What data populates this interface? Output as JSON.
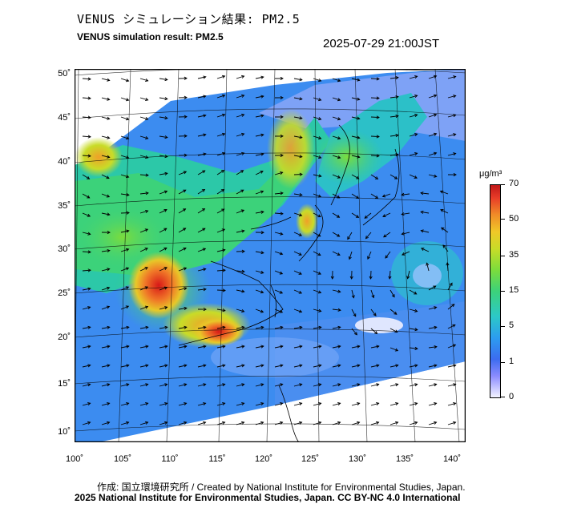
{
  "header": {
    "title_ja": "VENUS シミュレーション結果: PM2.5",
    "title_en": "VENUS simulation result: PM2.5",
    "datetime": "2025-07-29 21:00JST"
  },
  "map": {
    "lat_labels": [
      "50˚",
      "45˚",
      "40˚",
      "35˚",
      "30˚",
      "25˚",
      "20˚",
      "15˚",
      "10˚"
    ],
    "lon_labels": [
      "100˚",
      "105˚",
      "110˚",
      "115˚",
      "120˚",
      "125˚",
      "130˚",
      "135˚",
      "140˚"
    ]
  },
  "colorbar": {
    "unit": "μg/m³",
    "labels": [
      "70",
      "50",
      "35",
      "15",
      "5",
      "1",
      "0"
    ],
    "colors": [
      "#f4f4ff",
      "#8c8cff",
      "#3c6cf0",
      "#2cc8c8",
      "#3cd27a",
      "#c8dc28",
      "#f08c28",
      "#c01818"
    ]
  },
  "footer": {
    "credit_line1": "作成: 国立環境研究所 / Created by National Institute for Environmental Studies, Japan.",
    "credit_line2": "2025 National Institute for Environmental Studies, Japan. CC BY-NC 4.0 International"
  }
}
